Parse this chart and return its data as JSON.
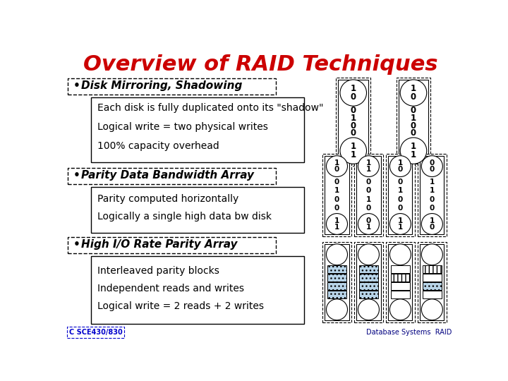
{
  "title": "Overview of RAID Techniques",
  "title_color": "#cc0000",
  "title_fontsize": 22,
  "bg_color": "#ffffff",
  "bullet1": "Disk Mirroring, Shadowing",
  "bullet2": "Parity Data Bandwidth Array",
  "bullet3": "High I/O Rate Parity Array",
  "sub1": [
    "Each disk is fully duplicated onto its \"shadow\"",
    "Logical write = two physical writes",
    "100% capacity overhead"
  ],
  "sub2": [
    "Parity computed horizontally",
    "Logically a single high data bw disk"
  ],
  "sub3": [
    "Interleaved parity blocks",
    "Independent reads and writes",
    "Logical write = 2 reads + 2 writes"
  ],
  "raid1_bits": [
    [
      "1",
      "0",
      "0",
      "1",
      "0",
      "0",
      "1",
      "1"
    ],
    [
      "1",
      "0",
      "0",
      "1",
      "0",
      "0",
      "1",
      "1"
    ]
  ],
  "raid3_bits": [
    [
      "1",
      "0",
      "0",
      "1",
      "0",
      "0",
      "1",
      "1"
    ],
    [
      "1",
      "1",
      "0",
      "0",
      "1",
      "0",
      "0",
      "1"
    ],
    [
      "1",
      "0",
      "0",
      "1",
      "0",
      "0",
      "1",
      "1"
    ],
    [
      "0",
      "0",
      "1",
      "1",
      "0",
      "0",
      "1",
      "0"
    ]
  ],
  "footer_left": "C SCE430/830",
  "footer_right": "Database Systems  RAID"
}
